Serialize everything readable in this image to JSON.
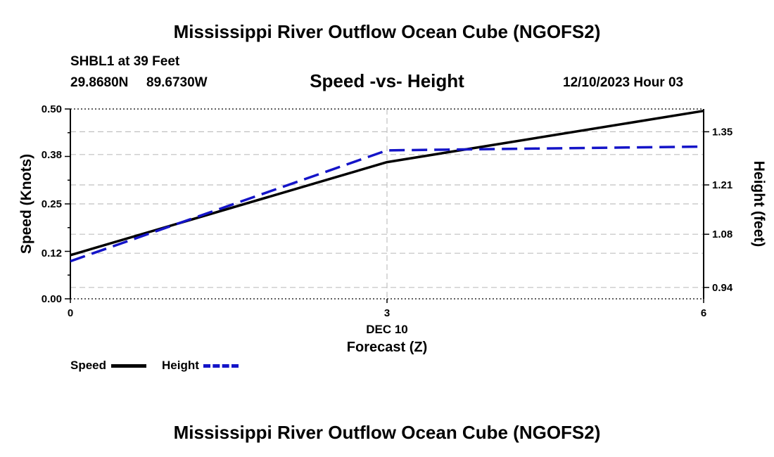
{
  "page": {
    "title": "Mississippi River Outflow Ocean Cube (NGOFS2)",
    "footer_title": "Mississippi River Outflow Ocean Cube (NGOFS2)",
    "station": "SHBL1 at 39 Feet",
    "lat": "29.8680N",
    "lon": "89.6730W",
    "chart_title": "Speed -vs- Height",
    "datetime": "12/10/2023 Hour 03"
  },
  "colors": {
    "speed": "#000000",
    "height": "#1414c8",
    "grid": "#c0c0c0"
  },
  "chart_data": {
    "type": "line",
    "title": "Speed -vs- Height",
    "xlabel": "Forecast (Z)",
    "xsublabel": "DEC 10",
    "ylabel": "Speed (Knots)",
    "y2label": "Height (feet)",
    "x": [
      0,
      3,
      6
    ],
    "xticks": [
      0,
      3,
      6
    ],
    "xticklabels": [
      "0",
      "3",
      "6"
    ],
    "xlim": [
      0,
      6
    ],
    "ylim": [
      0.0,
      0.5
    ],
    "yticks": [
      0.0,
      0.12,
      0.25,
      0.38,
      0.5
    ],
    "yticklabels": [
      "0.00",
      "0.12",
      "0.25",
      "0.38",
      "0.50"
    ],
    "y2lim": [
      0.91,
      1.41
    ],
    "y2ticks": [
      0.94,
      1.08,
      1.21,
      1.35
    ],
    "y2ticklabels": [
      "0.94",
      "1.08",
      "1.21",
      "1.35"
    ],
    "series": [
      {
        "name": "Speed",
        "axis": "left",
        "style": "solid",
        "values": [
          0.115,
          0.36,
          0.495
        ]
      },
      {
        "name": "Height",
        "axis": "right",
        "style": "dashed",
        "values": [
          1.009,
          1.301,
          1.311
        ]
      }
    ],
    "legend": [
      "Speed",
      "Height"
    ]
  }
}
